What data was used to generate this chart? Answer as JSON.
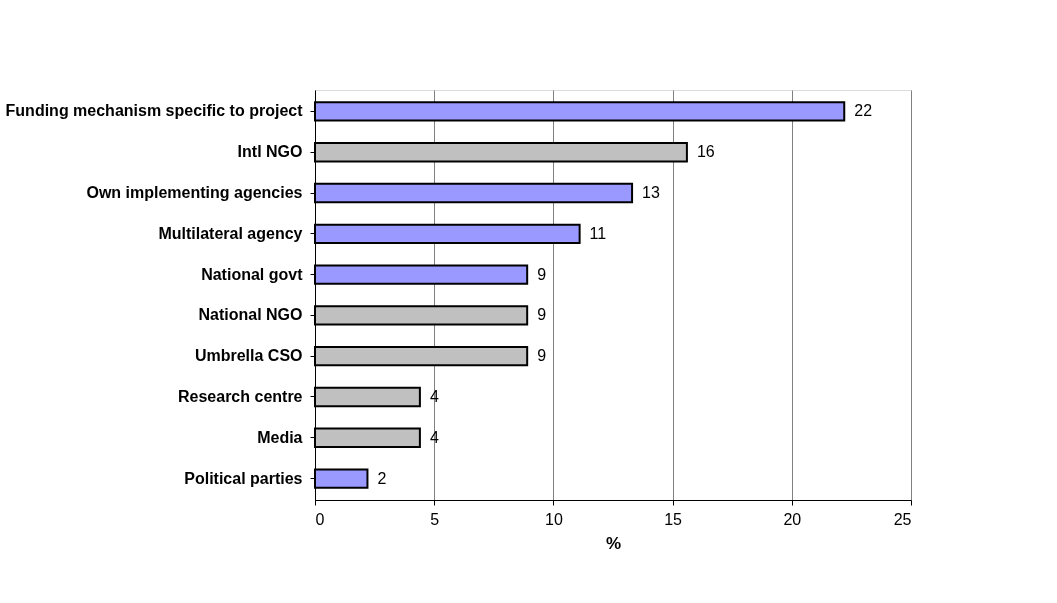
{
  "chart_data": {
    "type": "bar",
    "orientation": "horizontal",
    "categories": [
      "Funding mechanism specific to project",
      "Intl NGO",
      "Own implementing agencies",
      "Multilateral agency",
      "National govt",
      "National NGO",
      "Umbrella CSO",
      "Research centre",
      "Media",
      "Political parties"
    ],
    "values": [
      22.2,
      15.6,
      13.3,
      11.1,
      8.9,
      8.9,
      8.9,
      4.4,
      4.4,
      2.2
    ],
    "colors": [
      "#9999ff",
      "#c0c0c0",
      "#9999ff",
      "#9999ff",
      "#9999ff",
      "#c0c0c0",
      "#c0c0c0",
      "#c0c0c0",
      "#c0c0c0",
      "#9999ff"
    ],
    "value_labels": [
      "22",
      "16",
      "13",
      "11",
      "9",
      "9",
      "9",
      "4",
      "4",
      "2"
    ],
    "xlabel": "%",
    "xlim": [
      0,
      25
    ],
    "xticks": [
      0,
      5,
      10,
      15,
      20,
      25
    ],
    "grid": "x"
  }
}
